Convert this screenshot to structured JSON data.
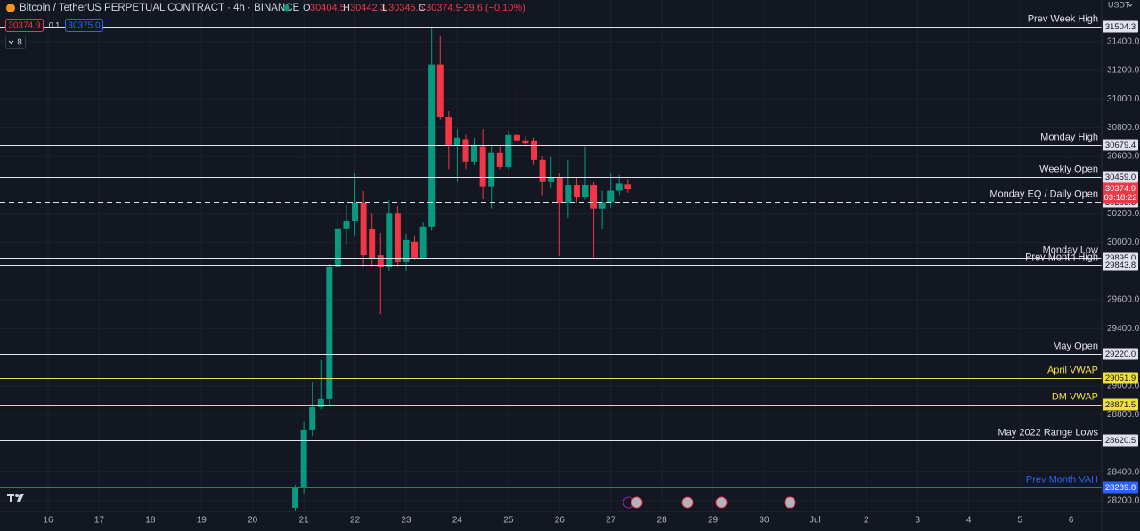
{
  "header": {
    "symbol": "Bitcoin / TetherUS PERPETUAL CONTRACT · 4h · BINANCE",
    "ohlc_letters": [
      "O",
      "H",
      "L",
      "C"
    ],
    "change": "−29.6 (−0.10%)",
    "sell": "30374.9",
    "spread": "0.1",
    "buy": "30375.0",
    "indicators": "8",
    "currency": "USDT"
  },
  "chart_data": {
    "type": "candlestick",
    "x": [
      20.8333,
      21,
      21.1667,
      21.3333,
      21.5,
      21.6667,
      21.8333,
      22,
      22.1667,
      22.3333,
      22.5,
      22.6667,
      22.8333,
      23,
      23.1667,
      23.3333,
      23.5,
      23.6667,
      23.8333,
      24,
      24.1667,
      24.3333,
      24.5,
      24.6667,
      24.8333,
      25,
      25.1667,
      25.3333,
      25.5,
      25.6667,
      25.8333,
      26,
      26.1667,
      26.3333,
      26.5,
      26.6667,
      26.8333,
      27,
      27.1667,
      27.3333
    ],
    "open": [
      28150,
      28290,
      28696,
      28851,
      28907,
      29831,
      30098,
      30150,
      30278,
      30095,
      29910,
      29830,
      30200,
      29862,
      30005,
      29893,
      30110,
      31240,
      30873,
      30680,
      30720,
      30563,
      30670,
      30390,
      30625,
      30525,
      30749,
      30712,
      30712,
      30575,
      30420,
      30450,
      30277,
      30400,
      30315,
      30400,
      30235,
      30280,
      30360,
      30404.5
    ],
    "high": [
      28310,
      28746,
      29025,
      29180,
      29850,
      30823,
      30260,
      30482,
      30358,
      30200,
      30065,
      30296,
      30250,
      30060,
      30048,
      30140,
      31505,
      31440,
      30915,
      30790,
      30750,
      30730,
      30790,
      30670,
      30670,
      30775,
      31052,
      30740,
      30730,
      30605,
      30600,
      30480,
      30575,
      30450,
      30670,
      30420,
      30360,
      30480,
      30470,
      30442.3
    ],
    "low": [
      28110,
      28250,
      28653,
      28835,
      28870,
      29820,
      29990,
      30050,
      29830,
      29830,
      29500,
      29800,
      29830,
      29800,
      29880,
      29890,
      30080,
      30855,
      30510,
      30420,
      30510,
      30540,
      30300,
      30235,
      30510,
      30510,
      30700,
      30670,
      30545,
      30330,
      30380,
      29905,
      30170,
      30277,
      30300,
      29895,
      30090,
      30240,
      30330,
      30345.6
    ],
    "close": [
      28290,
      28696,
      28851,
      28907,
      29831,
      30098,
      30150,
      30278,
      29910,
      29890,
      29830,
      30200,
      29862,
      30017,
      29893,
      30110,
      31240,
      30873,
      30680,
      30730,
      30563,
      30680,
      30390,
      30625,
      30525,
      30749,
      30712,
      30690,
      30575,
      30420,
      30450,
      30277,
      30400,
      30315,
      30400,
      30235,
      30280,
      30360,
      30410,
      30374.9
    ],
    "xlim": [
      15.06,
      36.6
    ],
    "xticks": [
      16,
      17,
      18,
      19,
      20,
      21,
      22,
      23,
      24,
      25,
      26,
      27,
      28,
      29,
      30,
      {
        "value": 31,
        "label": "Jul"
      },
      {
        "value": 32,
        "label": "2"
      },
      {
        "value": 33,
        "label": "3"
      },
      {
        "value": 34,
        "label": "4"
      },
      {
        "value": 35,
        "label": "5"
      },
      {
        "value": 36,
        "label": "6"
      }
    ],
    "ylim": [
      28125,
      31690
    ],
    "yticks": [
      {
        "value": 28200,
        "label": "28200.0"
      },
      {
        "value": 28400,
        "label": "28400.0"
      },
      {
        "value": 28800,
        "label": "28800.0"
      },
      {
        "value": 29000,
        "label": "29000.0"
      },
      {
        "value": 29400,
        "label": "29400.0"
      },
      {
        "value": 29600,
        "label": "29600.0"
      },
      {
        "value": 30000,
        "label": "30000.0"
      },
      {
        "value": 30200,
        "label": "30200.0"
      },
      {
        "value": 30600,
        "label": "30600.0"
      },
      {
        "value": 30800,
        "label": "30800.0"
      },
      {
        "value": 31000,
        "label": "31000.0"
      },
      {
        "value": 31200,
        "label": "31200.0"
      },
      {
        "value": 31400,
        "label": "31400.0"
      }
    ],
    "grid": true,
    "up_color": "#089981",
    "down_color": "#f23645",
    "levels": [
      {
        "name": "Prev Week High",
        "price": 31504.3,
        "color": "#e0e3eb",
        "style": "solid"
      },
      {
        "name": "Monday High",
        "price": 30679.4,
        "color": "#e0e3eb",
        "style": "solid"
      },
      {
        "name": "Weekly Open",
        "price": {
          "value": 30459,
          "label": "30459.0"
        },
        "color": "#e0e3eb",
        "style": "solid"
      },
      {
        "name": "Monday EQ / Daily Open",
        "price": 30283.3,
        "color": "#e0e3eb",
        "style": "dashed"
      },
      {
        "name": "Monday Low",
        "price": {
          "value": 29895,
          "label": "29895.0"
        },
        "color": "#e0e3eb",
        "style": "solid"
      },
      {
        "name": "Prev Month High",
        "price": 29843.8,
        "color": "#e0e3eb",
        "style": "solid"
      },
      {
        "name": "May Open",
        "price": {
          "value": 29220,
          "label": "29220.0"
        },
        "color": "#e0e3eb",
        "style": "solid"
      },
      {
        "name": "April VWAP",
        "price": 29051.9,
        "color": "#f2e13a",
        "style": "solid"
      },
      {
        "name": "DM VWAP",
        "price": 28871.5,
        "color": "#f2e13a",
        "style": "solid"
      },
      {
        "name": "May 2022 Range Lows",
        "price": 28620.5,
        "color": "#e0e3eb",
        "style": "solid"
      },
      {
        "name": "Prev Month VAH",
        "price": 28289.8,
        "color": "#2962ff",
        "style": "solid"
      }
    ],
    "last_price": {
      "value": 30374.9,
      "countdown": "03:18:22",
      "color": "#f23645"
    }
  }
}
